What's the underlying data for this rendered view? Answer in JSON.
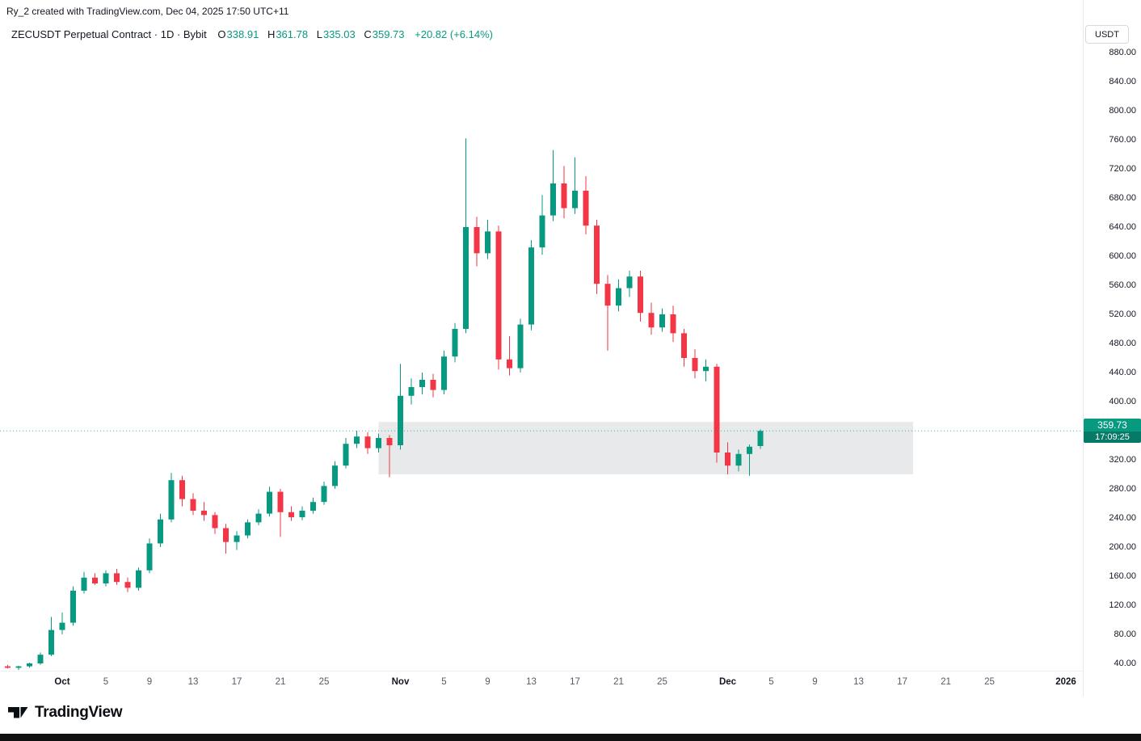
{
  "attribution": "Ry_2 created with TradingView.com, Dec 04, 2025 17:50 UTC+11",
  "legend": {
    "title": "ZECUSDT Perpetual Contract · 1D · Bybit",
    "ohlc": [
      {
        "label": "O",
        "value": "338.91"
      },
      {
        "label": "H",
        "value": "361.78"
      },
      {
        "label": "L",
        "value": "335.03"
      },
      {
        "label": "C",
        "value": "359.73"
      }
    ],
    "change": "+20.82 (+6.14%)"
  },
  "price_axis": {
    "unit_button": "USDT",
    "labels": [
      "880.00",
      "840.00",
      "800.00",
      "760.00",
      "720.00",
      "680.00",
      "640.00",
      "600.00",
      "560.00",
      "520.00",
      "480.00",
      "440.00",
      "400.00",
      "360.00",
      "320.00",
      "280.00",
      "240.00",
      "200.00",
      "160.00",
      "120.00",
      "80.00",
      "40.00"
    ],
    "last_price_badge": {
      "price": "359.73",
      "countdown": "17:09:25"
    }
  },
  "time_axis": {
    "ticks": [
      {
        "label": "Oct",
        "day": 5,
        "major": true
      },
      {
        "label": "5",
        "day": 9
      },
      {
        "label": "9",
        "day": 13
      },
      {
        "label": "13",
        "day": 17
      },
      {
        "label": "17",
        "day": 21
      },
      {
        "label": "21",
        "day": 25
      },
      {
        "label": "25",
        "day": 29
      },
      {
        "label": "Nov",
        "day": 36,
        "major": true
      },
      {
        "label": "5",
        "day": 40
      },
      {
        "label": "9",
        "day": 44
      },
      {
        "label": "13",
        "day": 48
      },
      {
        "label": "17",
        "day": 52
      },
      {
        "label": "21",
        "day": 56
      },
      {
        "label": "25",
        "day": 60
      },
      {
        "label": "Dec",
        "day": 66,
        "major": true
      },
      {
        "label": "5",
        "day": 70
      },
      {
        "label": "9",
        "day": 74
      },
      {
        "label": "13",
        "day": 78
      },
      {
        "label": "17",
        "day": 82
      },
      {
        "label": "21",
        "day": 86
      },
      {
        "label": "25",
        "day": 90
      },
      {
        "label": "2026",
        "day": 97,
        "major": true
      }
    ]
  },
  "footer": {
    "brand": "TradingView"
  },
  "colors": {
    "up": "#089981",
    "down": "#f23645",
    "text": "#131722",
    "muted": "#787b86",
    "axis_border": "#e0e3eb",
    "zone_fill": "rgba(140,143,152,0.20)"
  },
  "chart_data": {
    "type": "candlestick",
    "symbol": "ZECUSDT Perpetual Contract",
    "exchange": "Bybit",
    "interval": "1D",
    "quote_unit": "USDT",
    "ylim": [
      40,
      880
    ],
    "y_step": 40,
    "last_price": 359.73,
    "zone": {
      "start_day": 34,
      "end_day": 83,
      "price_top": 372,
      "price_bottom": 300,
      "note": "gray highlight zone"
    },
    "candles": [
      [
        "2025-09-26",
        36,
        38,
        33,
        34
      ],
      [
        "2025-09-27",
        34,
        37,
        31,
        36
      ],
      [
        "2025-09-28",
        36,
        41,
        34,
        40
      ],
      [
        "2025-09-29",
        40,
        55,
        38,
        52
      ],
      [
        "2025-09-30",
        52,
        104,
        50,
        86
      ],
      [
        "2025-10-01",
        86,
        110,
        80,
        96
      ],
      [
        "2025-10-02",
        96,
        146,
        92,
        140
      ],
      [
        "2025-10-03",
        140,
        166,
        136,
        158
      ],
      [
        "2025-10-04",
        158,
        164,
        148,
        150
      ],
      [
        "2025-10-05",
        150,
        168,
        146,
        164
      ],
      [
        "2025-10-06",
        164,
        170,
        148,
        152
      ],
      [
        "2025-10-07",
        152,
        158,
        138,
        144
      ],
      [
        "2025-10-08",
        144,
        172,
        140,
        168
      ],
      [
        "2025-10-09",
        168,
        212,
        164,
        205
      ],
      [
        "2025-10-10",
        205,
        246,
        200,
        238
      ],
      [
        "2025-10-11",
        238,
        302,
        234,
        292
      ],
      [
        "2025-10-12",
        292,
        298,
        256,
        266
      ],
      [
        "2025-10-13",
        266,
        274,
        244,
        250
      ],
      [
        "2025-10-14",
        250,
        262,
        236,
        244
      ],
      [
        "2025-10-15",
        244,
        248,
        218,
        226
      ],
      [
        "2025-10-16",
        226,
        232,
        191,
        207
      ],
      [
        "2025-10-17",
        207,
        222,
        196,
        216
      ],
      [
        "2025-10-18",
        216,
        238,
        212,
        234
      ],
      [
        "2025-10-19",
        234,
        252,
        230,
        246
      ],
      [
        "2025-10-20",
        246,
        283,
        242,
        276
      ],
      [
        "2025-10-21",
        276,
        280,
        214,
        248
      ],
      [
        "2025-10-22",
        248,
        256,
        236,
        241
      ],
      [
        "2025-10-23",
        241,
        256,
        237,
        250
      ],
      [
        "2025-10-24",
        250,
        268,
        246,
        262
      ],
      [
        "2025-10-25",
        262,
        290,
        258,
        284
      ],
      [
        "2025-10-26",
        284,
        318,
        280,
        312
      ],
      [
        "2025-10-27",
        312,
        350,
        308,
        342
      ],
      [
        "2025-10-28",
        342,
        360,
        336,
        352
      ],
      [
        "2025-10-29",
        352,
        358,
        328,
        336
      ],
      [
        "2025-10-30",
        336,
        356,
        330,
        350
      ],
      [
        "2025-10-31",
        350,
        354,
        296,
        340
      ],
      [
        "2025-11-01",
        340,
        452,
        334,
        408
      ],
      [
        "2025-11-02",
        408,
        432,
        396,
        420
      ],
      [
        "2025-11-03",
        420,
        440,
        410,
        430
      ],
      [
        "2025-11-04",
        430,
        438,
        406,
        416
      ],
      [
        "2025-11-05",
        416,
        470,
        410,
        462
      ],
      [
        "2025-11-06",
        462,
        508,
        454,
        500
      ],
      [
        "2025-11-07",
        500,
        762,
        494,
        640
      ],
      [
        "2025-11-08",
        640,
        654,
        586,
        604
      ],
      [
        "2025-11-09",
        604,
        650,
        596,
        634
      ],
      [
        "2025-11-10",
        634,
        642,
        444,
        458
      ],
      [
        "2025-11-11",
        458,
        490,
        436,
        446
      ],
      [
        "2025-11-12",
        446,
        514,
        440,
        506
      ],
      [
        "2025-11-13",
        506,
        622,
        498,
        612
      ],
      [
        "2025-11-14",
        612,
        684,
        602,
        656
      ],
      [
        "2025-11-15",
        656,
        746,
        648,
        700
      ],
      [
        "2025-11-16",
        700,
        724,
        652,
        666
      ],
      [
        "2025-11-17",
        666,
        736,
        658,
        690
      ],
      [
        "2025-11-18",
        690,
        710,
        630,
        642
      ],
      [
        "2025-11-19",
        642,
        650,
        548,
        562
      ],
      [
        "2025-11-20",
        562,
        574,
        470,
        532
      ],
      [
        "2025-11-21",
        532,
        568,
        524,
        556
      ],
      [
        "2025-11-22",
        556,
        580,
        544,
        572
      ],
      [
        "2025-11-23",
        572,
        580,
        510,
        522
      ],
      [
        "2025-11-24",
        522,
        536,
        492,
        502
      ],
      [
        "2025-11-25",
        502,
        528,
        496,
        520
      ],
      [
        "2025-11-26",
        520,
        532,
        482,
        494
      ],
      [
        "2025-11-27",
        494,
        500,
        448,
        460
      ],
      [
        "2025-11-28",
        460,
        472,
        432,
        442
      ],
      [
        "2025-11-29",
        442,
        458,
        428,
        448
      ],
      [
        "2025-11-30",
        448,
        452,
        316,
        330
      ],
      [
        "2025-12-01",
        330,
        344,
        300,
        312
      ],
      [
        "2025-12-02",
        312,
        334,
        304,
        328
      ],
      [
        "2025-12-03",
        328,
        341,
        298,
        338
      ],
      [
        "2025-12-04",
        338.91,
        361.78,
        335.03,
        359.73
      ]
    ]
  }
}
